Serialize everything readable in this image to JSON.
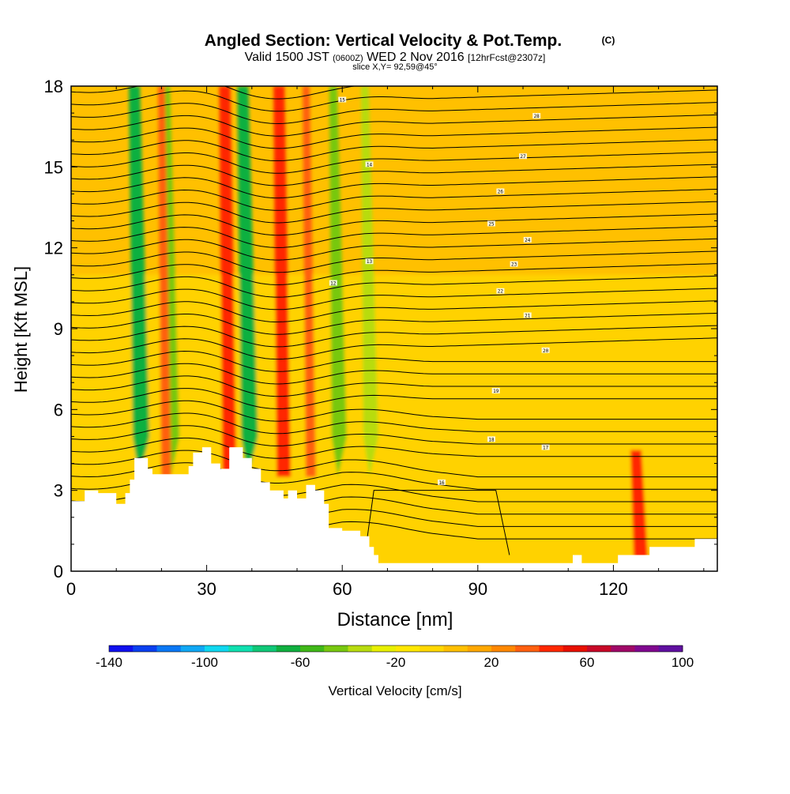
{
  "chart_data": {
    "type": "heatmap",
    "title": "Angled Section: Vertical Velocity & Pot.Temp.",
    "title_units": "(C)",
    "subtitle_prefix": "Valid 1500 JST",
    "subtitle_zulu": "(0600Z)",
    "subtitle_date": "WED 2 Nov 2016",
    "subtitle_forecast": "[12hrFcst@2307z]",
    "slice_label": "slice X,Y= 92,59@45°",
    "xlabel": "Distance [nm]",
    "ylabel": "Height [Kft MSL]",
    "xlim": [
      0,
      143
    ],
    "ylim": [
      0,
      18
    ],
    "xticks": [
      0,
      30,
      60,
      90,
      120
    ],
    "yticks": [
      0,
      3,
      6,
      9,
      12,
      15,
      18
    ],
    "xtick_labels": [
      "0",
      "30",
      "60",
      "90",
      "120"
    ],
    "ytick_labels": [
      "0",
      "3",
      "6",
      "9",
      "12",
      "15",
      "18"
    ],
    "colorbar": {
      "label": "Vertical Velocity [cm/s]",
      "range": [
        -140,
        100
      ],
      "tick_labels": [
        "-140",
        "-100",
        "-60",
        "-20",
        "20",
        "60",
        "100"
      ],
      "colors": [
        "#1010ee",
        "#0a40f0",
        "#0a78f5",
        "#10a8f5",
        "#10d8f0",
        "#10e0b0",
        "#10c878",
        "#10b040",
        "#40b818",
        "#78c810",
        "#b8dc10",
        "#e8f000",
        "#ffe800",
        "#ffd800",
        "#ffc000",
        "#ffa800",
        "#ff8800",
        "#ff6010",
        "#ff2800",
        "#e81000",
        "#c80828",
        "#a00868",
        "#800890",
        "#6010a0"
      ]
    },
    "downdraft_bands": [
      {
        "x": 14,
        "strength": "strong"
      },
      {
        "x": 21,
        "strength": "moderate"
      },
      {
        "x": 38,
        "strength": "strong"
      },
      {
        "x": 58,
        "strength": "moderate"
      },
      {
        "x": 65,
        "strength": "weak"
      }
    ],
    "updraft_bands": [
      {
        "x": 20,
        "strength": "moderate"
      },
      {
        "x": 34,
        "strength": "strong"
      },
      {
        "x": 46,
        "strength": "strong"
      },
      {
        "x": 52,
        "strength": "moderate"
      },
      {
        "x": 125,
        "strength": "strong"
      }
    ],
    "terrain": [
      [
        0,
        2.6
      ],
      [
        3,
        2.6
      ],
      [
        3,
        3.0
      ],
      [
        6,
        3.0
      ],
      [
        6,
        2.9
      ],
      [
        10,
        2.9
      ],
      [
        10,
        2.5
      ],
      [
        12,
        2.5
      ],
      [
        12,
        2.9
      ],
      [
        13,
        2.9
      ],
      [
        13,
        3.4
      ],
      [
        14,
        3.4
      ],
      [
        14,
        4.2
      ],
      [
        17,
        4.2
      ],
      [
        17,
        3.8
      ],
      [
        18,
        3.8
      ],
      [
        18,
        3.6
      ],
      [
        26,
        3.6
      ],
      [
        26,
        3.9
      ],
      [
        27,
        3.9
      ],
      [
        27,
        4.4
      ],
      [
        29,
        4.4
      ],
      [
        29,
        4.6
      ],
      [
        31,
        4.6
      ],
      [
        31,
        4.0
      ],
      [
        33,
        4.0
      ],
      [
        33,
        3.8
      ],
      [
        35,
        3.8
      ],
      [
        35,
        4.6
      ],
      [
        38,
        4.6
      ],
      [
        38,
        4.2
      ],
      [
        40,
        4.2
      ],
      [
        40,
        3.8
      ],
      [
        42,
        3.8
      ],
      [
        42,
        3.3
      ],
      [
        44,
        3.3
      ],
      [
        44,
        3.0
      ],
      [
        47,
        3.0
      ],
      [
        47,
        2.7
      ],
      [
        48,
        2.7
      ],
      [
        48,
        3.0
      ],
      [
        50,
        3.0
      ],
      [
        50,
        2.7
      ],
      [
        52,
        2.7
      ],
      [
        52,
        3.2
      ],
      [
        54,
        3.2
      ],
      [
        54,
        3.0
      ],
      [
        56,
        3.0
      ],
      [
        56,
        2.5
      ],
      [
        57,
        2.5
      ],
      [
        57,
        1.6
      ],
      [
        60,
        1.6
      ],
      [
        60,
        1.5
      ],
      [
        64,
        1.5
      ],
      [
        64,
        1.3
      ],
      [
        66,
        1.3
      ],
      [
        66,
        0.9
      ],
      [
        67,
        0.9
      ],
      [
        67,
        0.6
      ],
      [
        68,
        0.6
      ],
      [
        68,
        0.3
      ],
      [
        111,
        0.3
      ],
      [
        111,
        0.6
      ],
      [
        113,
        0.6
      ],
      [
        113,
        0.3
      ],
      [
        121,
        0.3
      ],
      [
        121,
        0.6
      ],
      [
        128,
        0.6
      ],
      [
        128,
        0.9
      ],
      [
        138,
        0.9
      ],
      [
        138,
        1.2
      ],
      [
        143,
        1.2
      ]
    ],
    "isentrope_labels": [
      "28",
      "27",
      "26",
      "25",
      "24",
      "23",
      "22",
      "21",
      "20",
      "19",
      "18",
      "17",
      "16",
      "15",
      "14",
      "13",
      "12"
    ]
  }
}
